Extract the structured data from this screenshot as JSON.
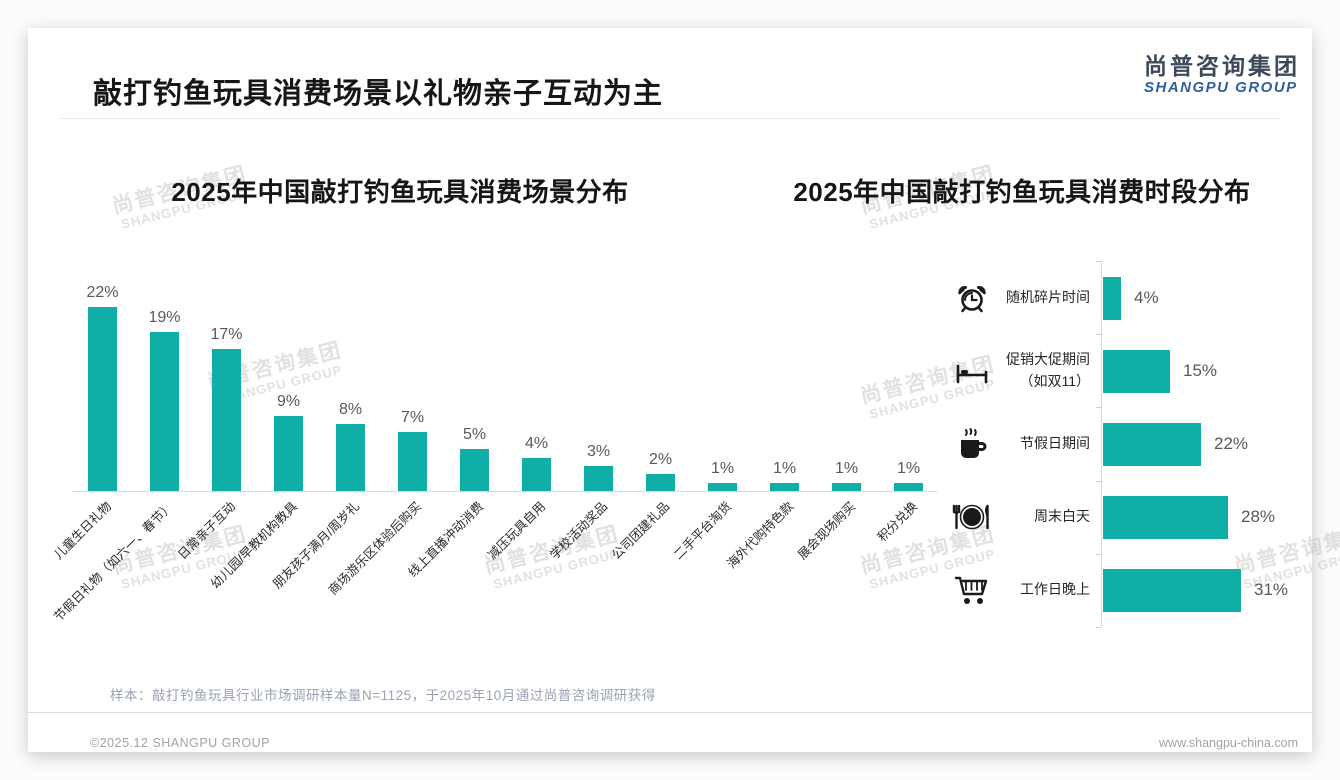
{
  "page": {
    "title": "敲打钓鱼玩具消费场景以礼物亲子互动为主",
    "logo": {
      "cn": "尚普咨询集团",
      "en": "SHANGPU GROUP"
    },
    "watermark": {
      "cn": "尚普咨询集团",
      "en": "SHANGPU GROUP"
    },
    "footnote": "样本：敲打钓鱼玩具行业市场调研样本量N=1125，于2025年10月通过尚普咨询调研获得",
    "footer_left": "©2025.12 SHANGPU GROUP",
    "footer_right": "www.shangpu-china.com"
  },
  "colors": {
    "accent_teal": "#0fafa7",
    "logo_blue": "#2f5fa0",
    "logo_gray": "#3d4a5a",
    "title_black": "#161616",
    "value_gray": "#595959",
    "axis_gray": "#d9d9d9",
    "footnote_gray": "#99a2b3"
  },
  "chart_data": [
    {
      "type": "bar",
      "title": "2025年中国敲打钓鱼玩具消费场景分布",
      "categories": [
        "儿童生日礼物",
        "节假日礼物（如六一、春节）",
        "日常亲子互动",
        "幼儿园/早教机构教具",
        "朋友孩子满月/周岁礼",
        "商场游乐区体验后购买",
        "线上直播冲动消费",
        "减压玩具自用",
        "学校活动奖品",
        "公司团建礼品",
        "二手平台淘货",
        "海外代购特色款",
        "展会现场购买",
        "积分兑换"
      ],
      "values": [
        22,
        19,
        17,
        9,
        8,
        7,
        5,
        4,
        3,
        2,
        1,
        1,
        1,
        1
      ],
      "unit": "%",
      "xlabel": "",
      "ylabel": "",
      "ylim": [
        0,
        24
      ],
      "grid": false,
      "legend": false,
      "data_labels": true,
      "category_rotation_deg": 45
    },
    {
      "type": "bar-horizontal",
      "title": "2025年中国敲打钓鱼玩具消费时段分布",
      "categories": [
        "随机碎片时间",
        "促销大促期间（如双11）",
        "节假日期间",
        "周末白天",
        "工作日晚上"
      ],
      "category_lines": [
        [
          "随机碎片时间"
        ],
        [
          "促销大促期间",
          "（如双11）"
        ],
        [
          "节假日期间"
        ],
        [
          "周末白天"
        ],
        [
          "工作日晚上"
        ]
      ],
      "icons": [
        "alarm-clock-icon",
        "bed-icon",
        "coffee-cup-icon",
        "dining-plate-icon",
        "shopping-cart-icon"
      ],
      "values": [
        4,
        15,
        22,
        28,
        31
      ],
      "unit": "%",
      "xlim": [
        0,
        35
      ],
      "grid": false,
      "legend": false,
      "data_labels": true
    }
  ]
}
